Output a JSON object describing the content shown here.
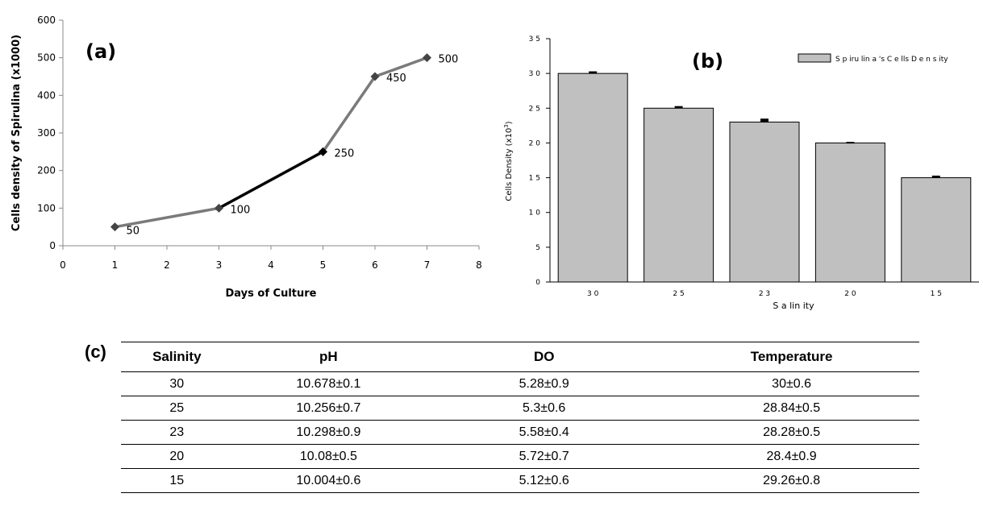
{
  "chart_data": [
    {
      "type": "line",
      "panel_label": "(a)",
      "xlabel": "Days of Culture",
      "ylabel": "Cells density of Spirulina (x1000)",
      "xlim": [
        0,
        8
      ],
      "ylim": [
        0,
        600
      ],
      "x_ticks": [
        0,
        1,
        2,
        3,
        4,
        5,
        6,
        7,
        8
      ],
      "y_ticks": [
        0,
        100,
        200,
        300,
        400,
        500,
        600
      ],
      "x": [
        1,
        3,
        5,
        6,
        7
      ],
      "values": [
        50,
        100,
        250,
        450,
        500
      ],
      "data_labels": [
        "50",
        "100",
        "250",
        "450",
        "500"
      ],
      "line_color": "#7a7a7a",
      "highlight_segment_color": "#000000",
      "marker": "diamond"
    },
    {
      "type": "bar",
      "panel_label": "(b)",
      "xlabel": "S a lin ity",
      "ylabel": "Cells Density (x10",
      "ylabel_sup": "3",
      "ylabel_close": ")",
      "categories": [
        "30",
        "25",
        "23",
        "20",
        "15"
      ],
      "values": [
        30,
        25,
        23,
        20,
        15
      ],
      "errors": [
        0.3,
        0.3,
        0.5,
        0.15,
        0.3
      ],
      "ylim": [
        0,
        35
      ],
      "y_ticks": [
        "0",
        "5",
        "1 0",
        "1 5",
        "2 0",
        "2 5",
        "3 0",
        "3 5"
      ],
      "y_tick_values": [
        0,
        5,
        10,
        15,
        20,
        25,
        30,
        35
      ],
      "x_tick_labels": [
        "3 0",
        "2 5",
        "2 3",
        "2 0",
        "1 5"
      ],
      "legend": "S p iru lin a 's  C e lls  D e n s ity",
      "legend_placement": "top-right",
      "bar_color": "#c0c0c0"
    }
  ],
  "table": {
    "panel_label": "(c)",
    "headers": [
      "Salinity",
      "pH",
      "DO",
      "Temperature"
    ],
    "rows": [
      [
        "30",
        "10.678±0.1",
        "5.28±0.9",
        "30±0.6"
      ],
      [
        "25",
        "10.256±0.7",
        "5.3±0.6",
        "28.84±0.5"
      ],
      [
        "23",
        "10.298±0.9",
        "5.58±0.4",
        "28.28±0.5"
      ],
      [
        "20",
        "10.08±0.5",
        "5.72±0.7",
        "28.4±0.9"
      ],
      [
        "15",
        "10.004±0.6",
        "5.12±0.6",
        "29.26±0.8"
      ]
    ]
  }
}
